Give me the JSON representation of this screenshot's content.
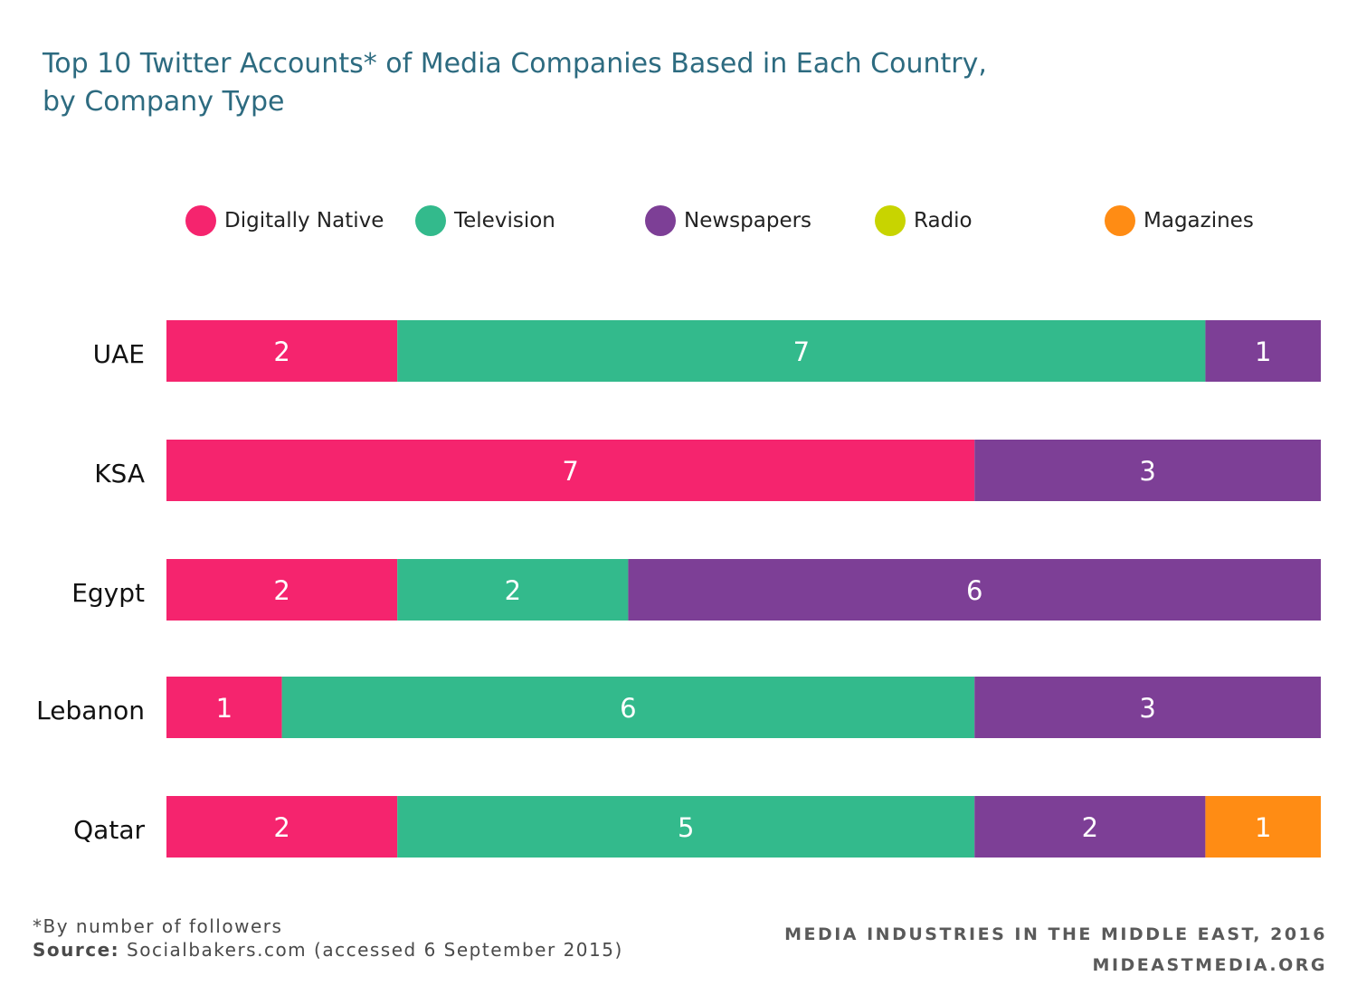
{
  "chart_data": {
    "type": "bar",
    "orientation": "horizontal",
    "stacked": true,
    "title": "Top 10 Twitter Accounts* of Media Companies Based in Each Country,",
    "subtitle": "by Company Type",
    "categories": [
      "UAE",
      "KSA",
      "Egypt",
      "Lebanon",
      "Qatar"
    ],
    "series": [
      {
        "name": "Digitally Native",
        "color": "#f5246e",
        "values": [
          2,
          7,
          2,
          1,
          2
        ]
      },
      {
        "name": "Television",
        "color": "#33ba8c",
        "values": [
          7,
          0,
          2,
          6,
          5
        ]
      },
      {
        "name": "Newspapers",
        "color": "#7d3f96",
        "values": [
          1,
          3,
          6,
          3,
          2
        ]
      },
      {
        "name": "Radio",
        "color": "#c8d400",
        "values": [
          0,
          0,
          0,
          0,
          0
        ]
      },
      {
        "name": "Magazines",
        "color": "#ff8c14",
        "values": [
          0,
          0,
          0,
          0,
          1
        ]
      }
    ],
    "xlim": [
      0,
      10
    ],
    "grid": false,
    "legend_position": "top",
    "data_labels": true
  },
  "footnote": {
    "note": "*By number of followers",
    "source_label": "Source:",
    "source_text": "Socialbakers.com (accessed 6 September 2015)"
  },
  "branding": {
    "line1": "MEDIA INDUSTRIES IN THE MIDDLE EAST, 2016",
    "line2": "MIDEASTMEDIA.ORG"
  }
}
